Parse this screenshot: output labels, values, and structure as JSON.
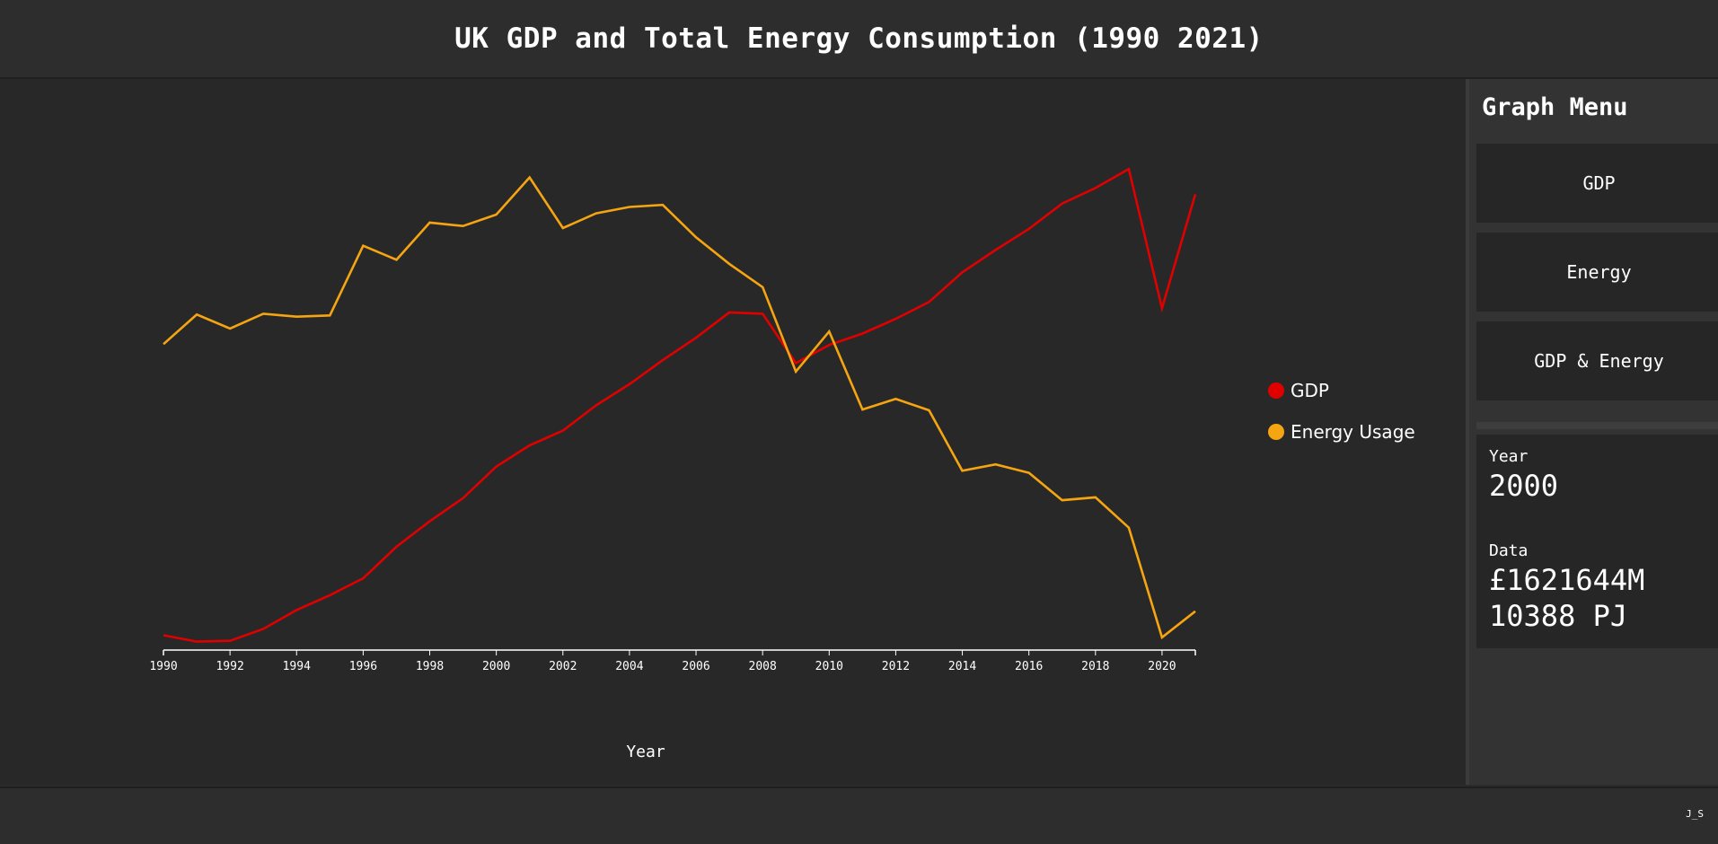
{
  "header": {
    "title": "UK GDP and Total Energy Consumption (1990 2021)"
  },
  "sidebar": {
    "title": "Graph Menu",
    "buttons": [
      {
        "label": "GDP"
      },
      {
        "label": "Energy"
      },
      {
        "label": "GDP & Energy"
      }
    ],
    "info": {
      "year_label": "Year",
      "year_value": "2000",
      "data_label": "Data",
      "gdp_value": "£1621644M",
      "energy_value": "10388 PJ"
    }
  },
  "footer": {
    "credit": "J_S"
  },
  "colors": {
    "gdp": "#e00000",
    "energy": "#f5a511",
    "axis": "#ffffff"
  },
  "chart_data": {
    "type": "line",
    "title": "UK GDP and Total Energy Consumption (1990 2021)",
    "xlabel": "Year",
    "ylabel": "",
    "x": [
      1990,
      1991,
      1992,
      1993,
      1994,
      1995,
      1996,
      1997,
      1998,
      1999,
      2000,
      2001,
      2002,
      2003,
      2004,
      2005,
      2006,
      2007,
      2008,
      2009,
      2010,
      2011,
      2012,
      2013,
      2014,
      2015,
      2016,
      2017,
      2018,
      2019,
      2020,
      2021
    ],
    "x_ticks": [
      "1990",
      "1992",
      "1994",
      "1996",
      "1998",
      "2000",
      "2002",
      "2004",
      "2006",
      "2008",
      "2010",
      "2012",
      "2014",
      "2016",
      "2018",
      "2020"
    ],
    "xlim": [
      1990,
      2021
    ],
    "legend_position": "right",
    "grid": false,
    "series": [
      {
        "name": "GDP",
        "color": "#e00000",
        "values": [
          0.035,
          0.02,
          0.022,
          0.05,
          0.095,
          0.13,
          0.17,
          0.245,
          0.305,
          0.36,
          0.435,
          0.485,
          0.52,
          0.58,
          0.63,
          0.687,
          0.74,
          0.8,
          0.797,
          0.68,
          0.723,
          0.75,
          0.785,
          0.825,
          0.895,
          0.948,
          0.998,
          1.058,
          1.095,
          1.14,
          0.81,
          1.08
        ],
        "ylim": [
          0,
          1.2
        ]
      },
      {
        "name": "Energy Usage",
        "color": "#f5a511",
        "values": [
          0.725,
          0.795,
          0.762,
          0.797,
          0.79,
          0.793,
          0.958,
          0.925,
          1.013,
          1.005,
          1.032,
          1.12,
          1.0,
          1.035,
          1.05,
          1.055,
          0.978,
          0.915,
          0.86,
          0.66,
          0.755,
          0.57,
          0.595,
          0.568,
          0.425,
          0.44,
          0.42,
          0.355,
          0.362,
          0.29,
          0.03,
          0.092
        ],
        "ylim": [
          0,
          1.2
        ]
      }
    ]
  }
}
